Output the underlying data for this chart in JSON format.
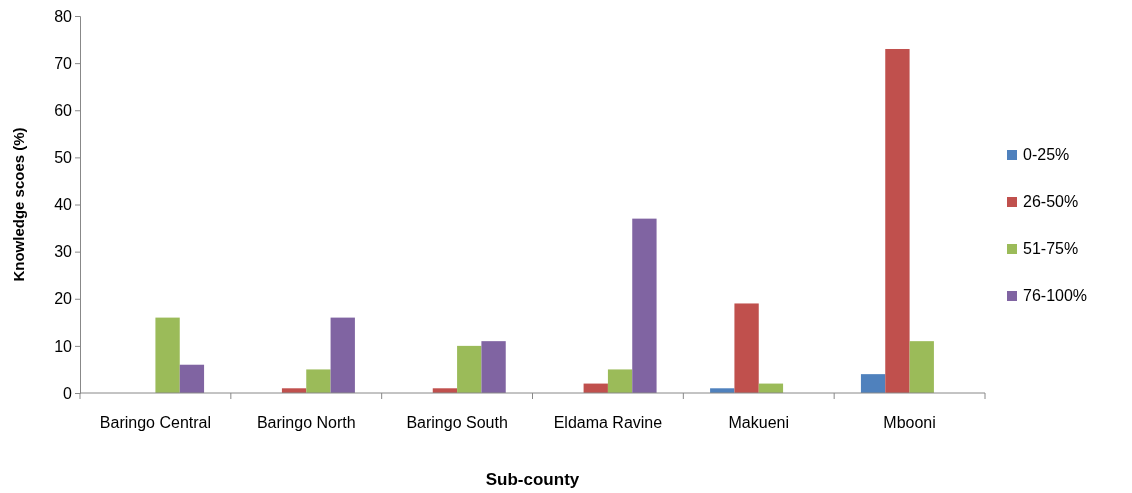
{
  "chart_data": {
    "type": "bar",
    "xlabel": "Sub-county",
    "ylabel": "Knowledge scoes (%)",
    "categories": [
      "Baringo Central",
      "Baringo North",
      "Baringo South",
      "Eldama Ravine",
      "Makueni",
      "Mbooni"
    ],
    "series": [
      {
        "name": "0-25%",
        "color": "#4f81bd",
        "values": [
          0,
          0,
          0,
          0,
          1,
          4
        ]
      },
      {
        "name": "26-50%",
        "color": "#c0504d",
        "values": [
          0,
          1,
          1,
          2,
          19,
          73
        ]
      },
      {
        "name": "51-75%",
        "color": "#9bbb59",
        "values": [
          16,
          5,
          10,
          5,
          2,
          11
        ]
      },
      {
        "name": "76-100%",
        "color": "#8064a2",
        "values": [
          6,
          16,
          11,
          37,
          0,
          0
        ]
      }
    ],
    "ylim": [
      0,
      80
    ],
    "yticks": [
      0,
      10,
      20,
      30,
      40,
      50,
      60,
      70,
      80
    ],
    "grid": false,
    "legend": "right"
  }
}
